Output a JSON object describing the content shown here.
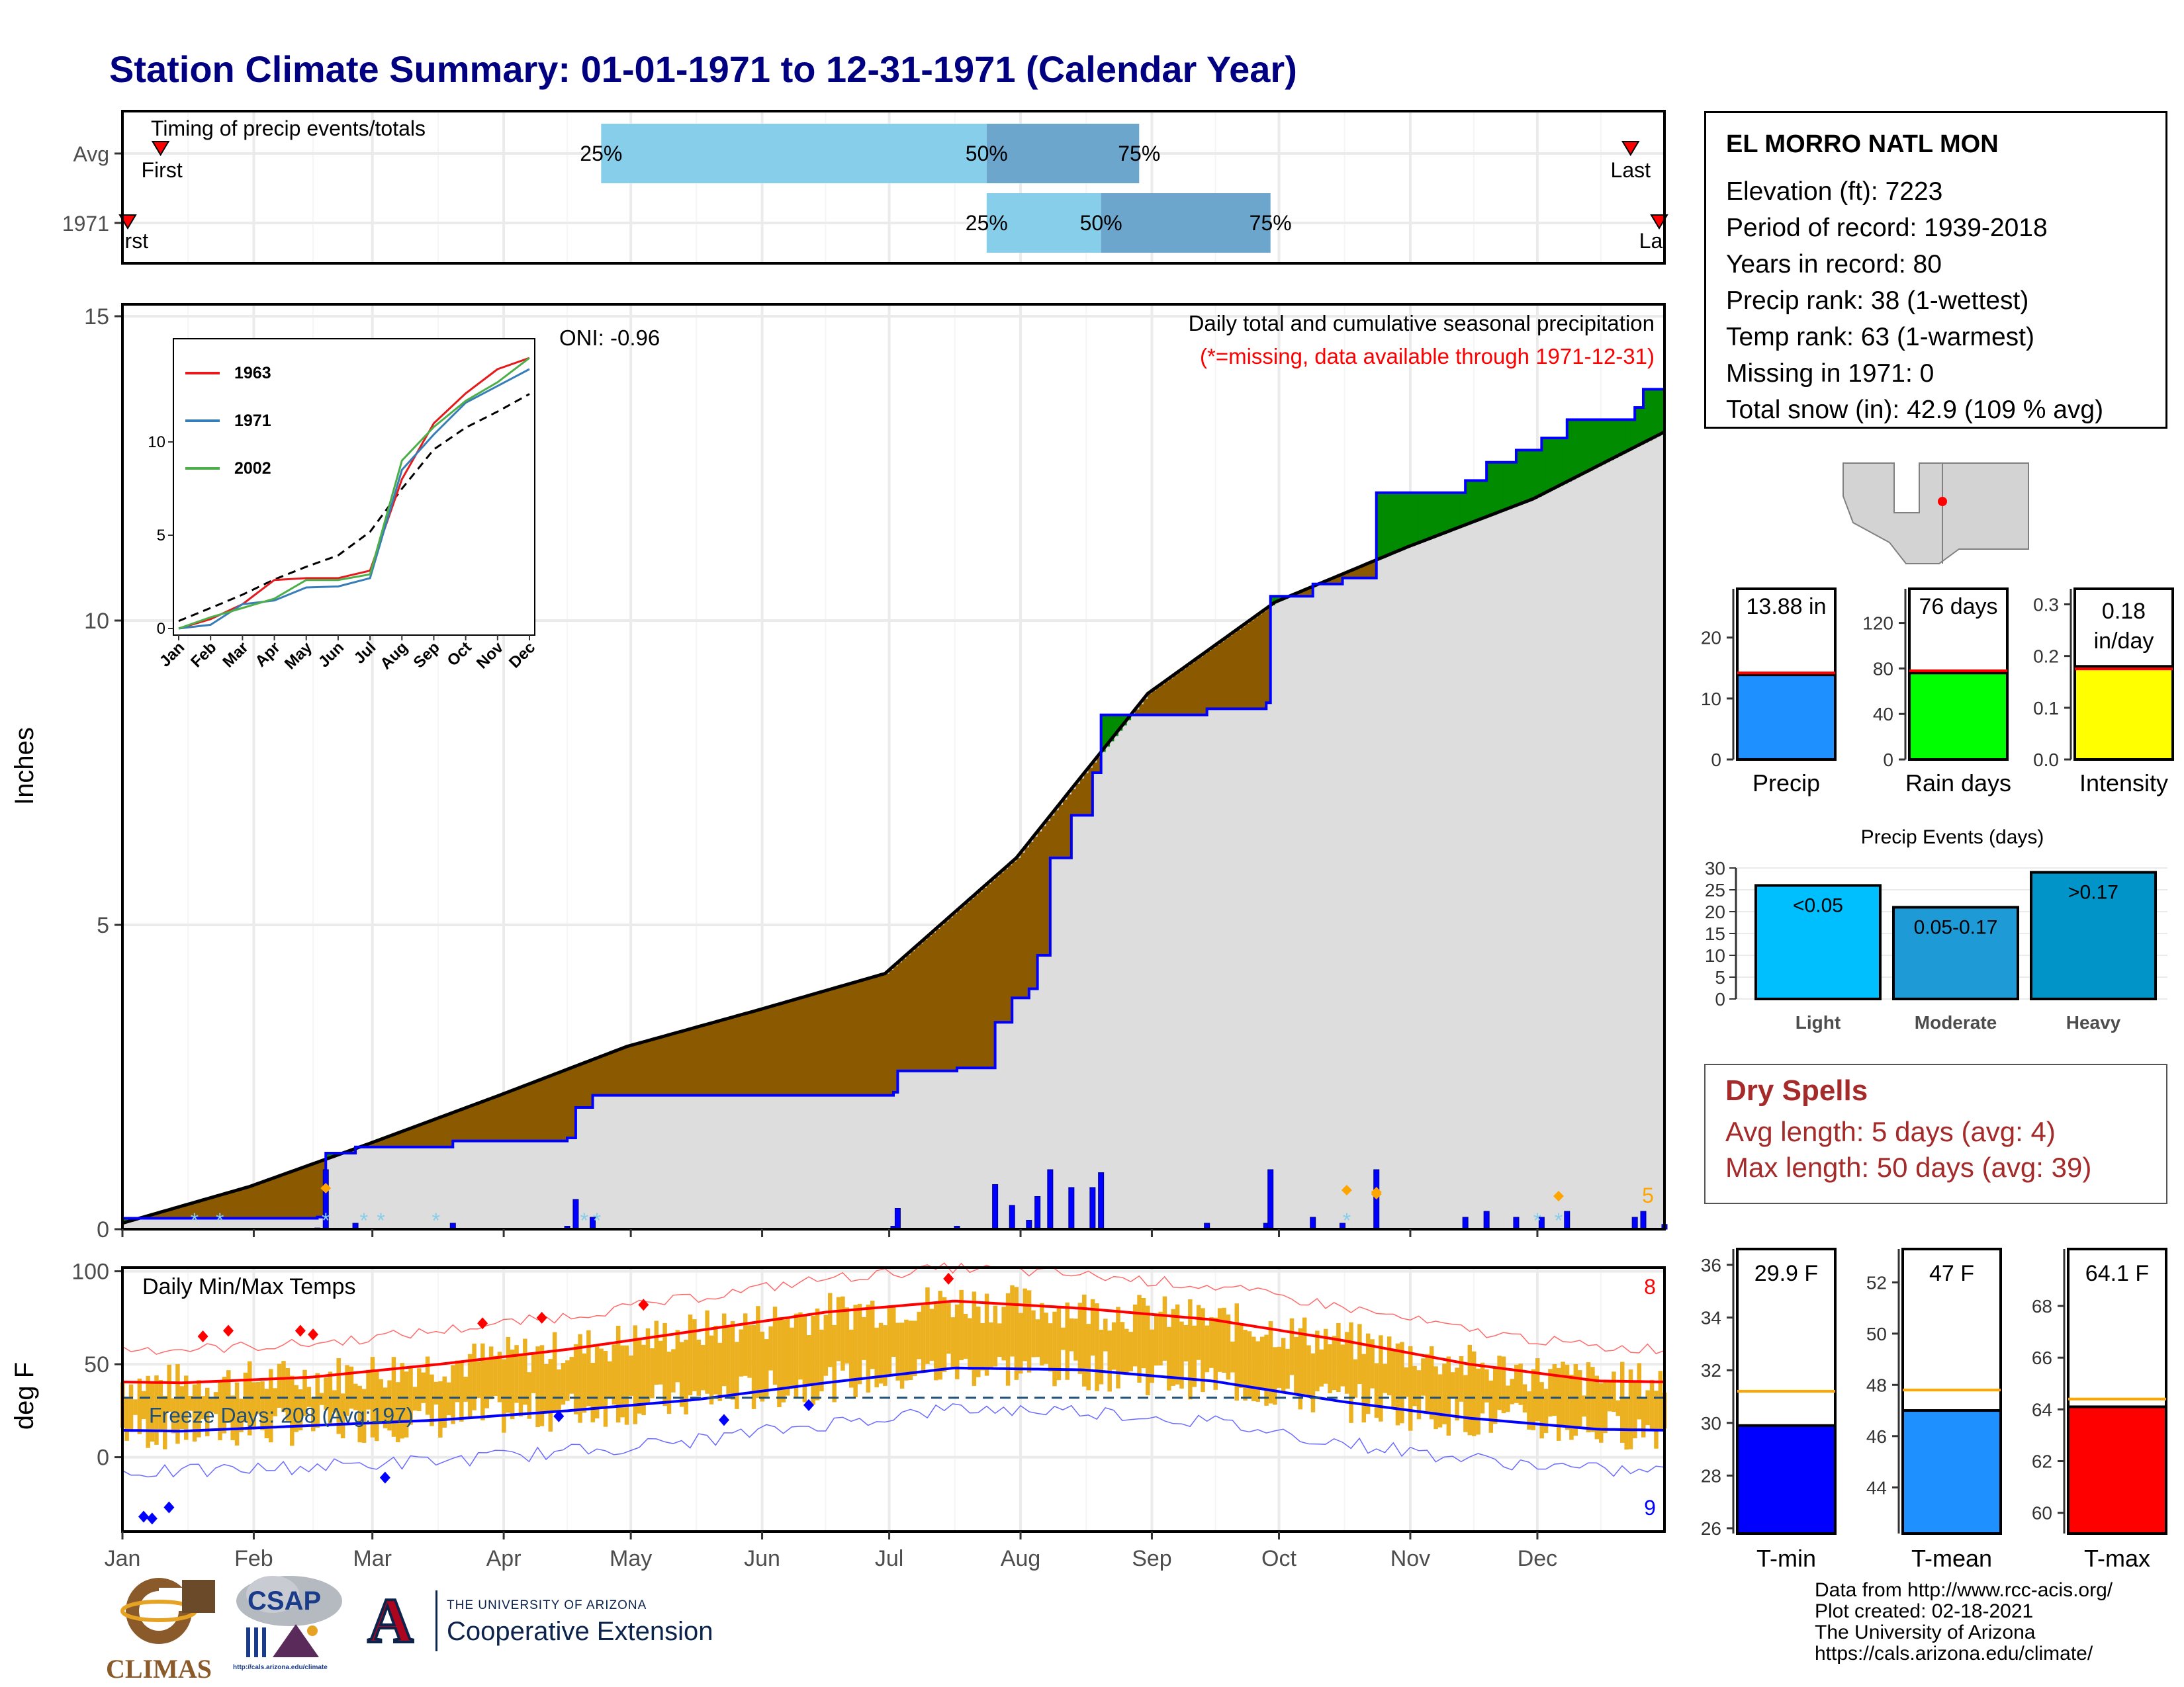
{
  "title": "Station Climate Summary: 01-01-1971 to 12-31-1971 (Calendar Year)",
  "station": {
    "name": "EL MORRO NATL MON",
    "rows": [
      "Elevation (ft): 7223",
      "Period of record: 1939-2018",
      "Years in record: 80",
      "Precip rank: 38 (1-wettest)",
      "Temp rank: 63 (1-warmest)",
      "Missing in 1971: 0",
      "Total snow (in): 42.9 (109 % avg)"
    ]
  },
  "dry_spells": {
    "title": "Dry Spells",
    "avg_length": "Avg length: 5 days (avg: 4)",
    "max_length": "Max length: 50 days (avg: 39)"
  },
  "credits": [
    "Data from http://www.rcc-acis.org/",
    "Plot created: 02-18-2021",
    "The University of Arizona",
    "https://cals.arizona.edu/climate/"
  ],
  "logos": {
    "climas": "CLIMAS",
    "csap": "CSAP",
    "csap_url": "http://cals.arizona.edu/climate",
    "ua_small": "THE UNIVERSITY OF ARIZONA",
    "coop": "Cooperative Extension"
  },
  "colors": {
    "title": "#000080",
    "precip_fill": "#1e90ff",
    "rain_fill": "#00ff00",
    "intensity_fill": "#ffff00",
    "deficit": "#8b5a00",
    "surplus": "#008b00",
    "normal_area": "#dddddd",
    "cum_line": "#0000ff",
    "temp_bar": "#ecb120",
    "tmax_line": "#ff0000",
    "tmin_line": "#0000ff",
    "light": "#00bfff",
    "moderate": "#1e9bd7",
    "heavy": "#0094c8"
  },
  "months": [
    "Jan",
    "Feb",
    "Mar",
    "Apr",
    "May",
    "Jun",
    "Jul",
    "Aug",
    "Sep",
    "Oct",
    "Nov",
    "Dec"
  ],
  "chart_data": [
    {
      "id": "timing",
      "type": "bar",
      "title": "Timing of precip events/totals",
      "rows": [
        {
          "label": "Avg",
          "first_marker": "First",
          "last_marker": "Last",
          "p25": "Apr 24",
          "p50": "Jul 24",
          "p75": "Aug 29",
          "labels": [
            "25%",
            "50%",
            "75%"
          ]
        },
        {
          "label": "1971",
          "first_marker": "First",
          "last_marker": "Last",
          "p25": "Jul 24",
          "p50": "Aug 20",
          "p75": "Sep 29",
          "labels": [
            "25%",
            "50%",
            "75%"
          ]
        }
      ]
    },
    {
      "id": "cumulative_precip",
      "type": "area",
      "title": "Daily total and cumulative seasonal precipitation",
      "subtitle": "(*=missing, data available through 1971-12-31)",
      "ylabel": "Inches",
      "ylim": [
        0,
        15
      ],
      "yticks": [
        0,
        5,
        10,
        15
      ],
      "oni": "ONI: -0.96",
      "daily_max_label": "5",
      "normal_cumulative": [
        {
          "day": 1,
          "value": 0.1
        },
        {
          "day": 31,
          "value": 0.7
        },
        {
          "day": 59,
          "value": 1.4
        },
        {
          "day": 90,
          "value": 2.2
        },
        {
          "day": 120,
          "value": 3.0
        },
        {
          "day": 151,
          "value": 3.6
        },
        {
          "day": 181,
          "value": 4.2
        },
        {
          "day": 212,
          "value": 6.1
        },
        {
          "day": 243,
          "value": 8.8
        },
        {
          "day": 273,
          "value": 10.3
        },
        {
          "day": 304,
          "value": 11.2
        },
        {
          "day": 334,
          "value": 12.0
        },
        {
          "day": 365,
          "value": 13.1
        }
      ],
      "cumulative_1971": [
        {
          "day": 1,
          "value": 0.18
        },
        {
          "day": 47,
          "value": 0.2
        },
        {
          "day": 49,
          "value": 1.25
        },
        {
          "day": 56,
          "value": 1.35
        },
        {
          "day": 79,
          "value": 1.45
        },
        {
          "day": 106,
          "value": 1.5
        },
        {
          "day": 108,
          "value": 2.0
        },
        {
          "day": 112,
          "value": 2.2
        },
        {
          "day": 183,
          "value": 2.25
        },
        {
          "day": 184,
          "value": 2.6
        },
        {
          "day": 198,
          "value": 2.65
        },
        {
          "day": 207,
          "value": 3.4
        },
        {
          "day": 211,
          "value": 3.8
        },
        {
          "day": 215,
          "value": 3.95
        },
        {
          "day": 217,
          "value": 4.5
        },
        {
          "day": 220,
          "value": 6.1
        },
        {
          "day": 225,
          "value": 6.8
        },
        {
          "day": 230,
          "value": 7.5
        },
        {
          "day": 232,
          "value": 8.45
        },
        {
          "day": 257,
          "value": 8.55
        },
        {
          "day": 271,
          "value": 8.65
        },
        {
          "day": 272,
          "value": 10.4
        },
        {
          "day": 282,
          "value": 10.6
        },
        {
          "day": 289,
          "value": 10.7
        },
        {
          "day": 297,
          "value": 12.1
        },
        {
          "day": 318,
          "value": 12.3
        },
        {
          "day": 323,
          "value": 12.6
        },
        {
          "day": 330,
          "value": 12.8
        },
        {
          "day": 336,
          "value": 13.0
        },
        {
          "day": 342,
          "value": 13.3
        },
        {
          "day": 358,
          "value": 13.5
        },
        {
          "day": 360,
          "value": 13.8
        },
        {
          "day": 365,
          "value": 13.88
        }
      ]
    },
    {
      "id": "inset_cumulative",
      "type": "line",
      "ylim": [
        0,
        15
      ],
      "yticks": [
        0,
        5,
        10
      ],
      "series": [
        {
          "name": "1963",
          "values": [
            0,
            0.5,
            1.3,
            2.6,
            2.7,
            2.7,
            3.1,
            8.0,
            11.0,
            12.6,
            13.9,
            14.5
          ]
        },
        {
          "name": "1971",
          "values": [
            0,
            0.2,
            1.3,
            1.5,
            2.2,
            2.25,
            2.7,
            8.5,
            10.4,
            12.1,
            13.0,
            13.9
          ]
        },
        {
          "name": "2002",
          "values": [
            0,
            0.6,
            1.1,
            1.6,
            2.6,
            2.6,
            2.9,
            9.0,
            10.8,
            12.2,
            13.2,
            14.5
          ]
        }
      ]
    },
    {
      "id": "summary_bars",
      "type": "bar",
      "items": [
        {
          "name": "Precip",
          "value": 13.88,
          "avg": 14.2,
          "label": "13.88 in",
          "ylim": [
            0,
            28
          ],
          "yticks": [
            0,
            10,
            20
          ]
        },
        {
          "name": "Rain days",
          "value": 76,
          "avg": 78,
          "label": "76 days",
          "ylim": [
            0,
            150
          ],
          "yticks": [
            0,
            40,
            80,
            120
          ]
        },
        {
          "name": "Intensity",
          "value": 0.18,
          "avg": 0.175,
          "label": "0.18 in/day",
          "ylim": [
            0,
            0.33
          ],
          "yticks": [
            0.0,
            0.1,
            0.2,
            0.3
          ]
        }
      ]
    },
    {
      "id": "precip_events",
      "type": "bar",
      "title": "Precip Events (days)",
      "ylim": [
        0,
        30
      ],
      "yticks": [
        0,
        5,
        10,
        15,
        20,
        25,
        30
      ],
      "categories": [
        "Light",
        "Moderate",
        "Heavy"
      ],
      "labels": [
        "<0.05",
        "0.05-0.17",
        ">0.17"
      ],
      "values": [
        26,
        21,
        29
      ]
    },
    {
      "id": "temperature",
      "type": "bar",
      "title": "Daily Min/Max Temps",
      "ylabel": "deg F",
      "ylim": [
        -40,
        102
      ],
      "yticks": [
        0,
        50,
        100
      ],
      "freeze_days": "Freeze Days: 208 (Avg:197)",
      "freeze_line": 32,
      "max_records_label": "8",
      "min_records_label": "9",
      "avg_max_monthly": [
        40,
        43,
        50,
        58,
        68,
        78,
        84,
        80,
        74,
        63,
        50,
        41
      ],
      "avg_min_monthly": [
        14,
        17,
        20,
        25,
        31,
        40,
        48,
        47,
        41,
        30,
        21,
        15
      ]
    },
    {
      "id": "temp_summary",
      "type": "bar",
      "items": [
        {
          "name": "T-min",
          "value": 29.9,
          "avg": 31.2,
          "label": "29.9 F",
          "ylim": [
            25.8,
            36.6
          ],
          "yticks": [
            26,
            28,
            30,
            32,
            34,
            36
          ]
        },
        {
          "name": "T-mean",
          "value": 47,
          "avg": 47.8,
          "label": "47 F",
          "ylim": [
            42.2,
            53.3
          ],
          "yticks": [
            44,
            46,
            48,
            50,
            52
          ]
        },
        {
          "name": "T-max",
          "value": 64.1,
          "avg": 64.4,
          "label": "64.1 F",
          "ylim": [
            59.2,
            70.2
          ],
          "yticks": [
            60,
            62,
            64,
            66,
            68
          ]
        }
      ]
    }
  ]
}
